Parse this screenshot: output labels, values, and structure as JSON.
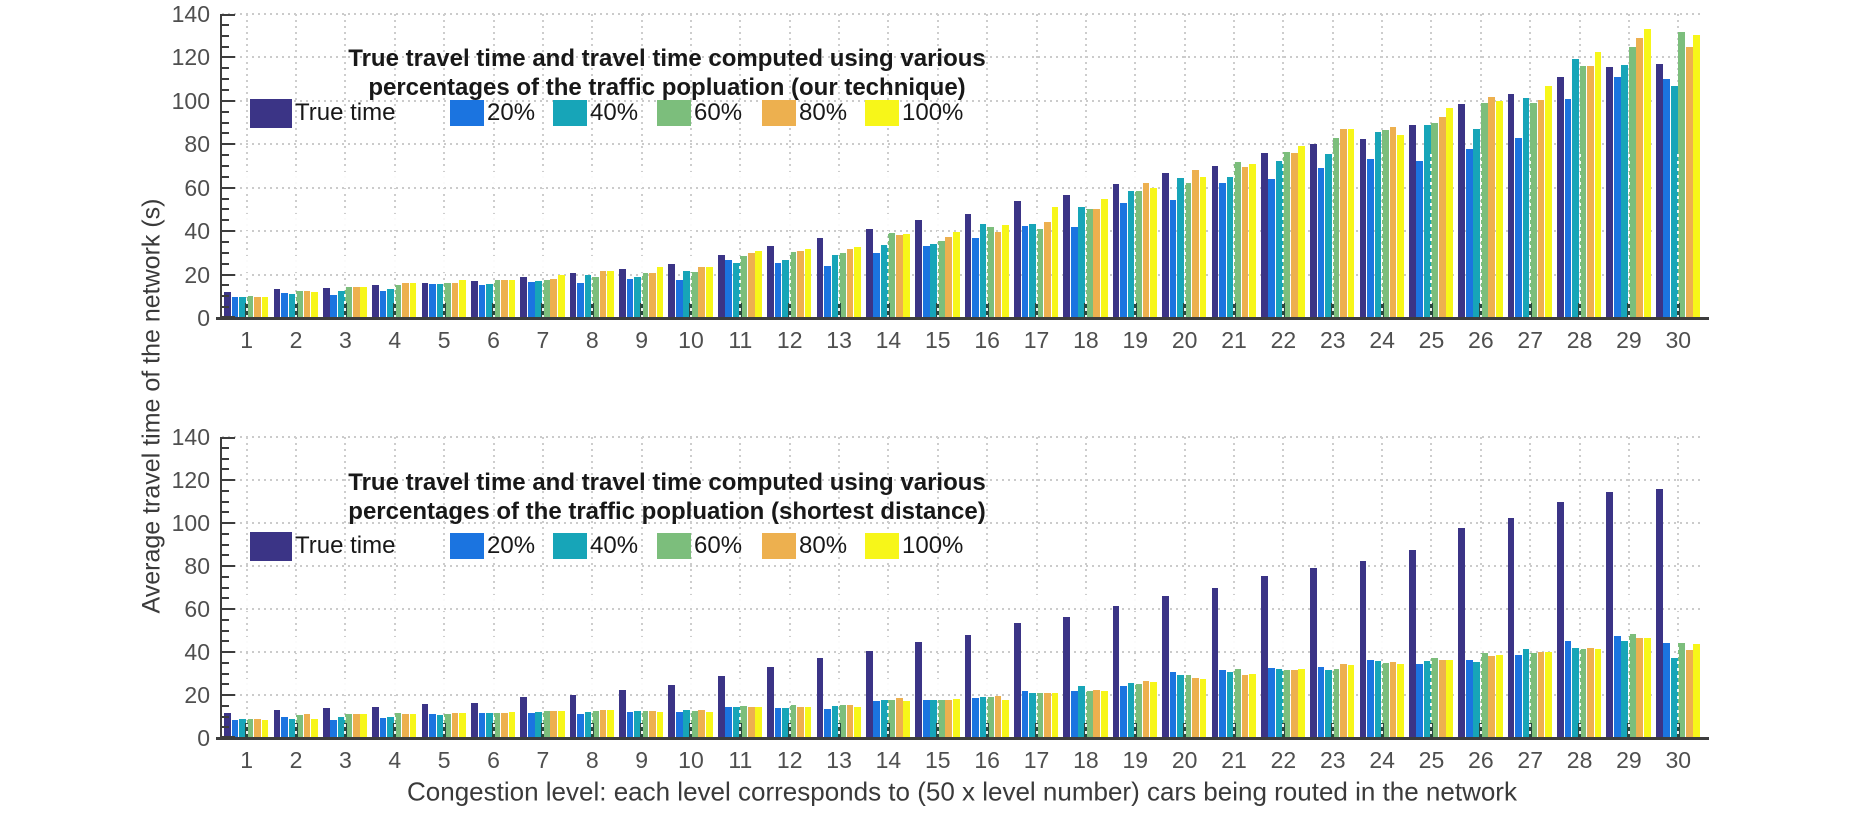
{
  "figure": {
    "ylabel": "Average travel time of the network (s)",
    "xlabel": "Congestion level: each level corresponds to (50 x level number) cars being routed in the network"
  },
  "style": {
    "grid_color": "#cbcbcb",
    "axis_color": "#3d3d3d",
    "tick_text_color": "#4f4f4f",
    "title_text_color": "#181818",
    "center_marker_color": "#2a473e"
  },
  "chart_data": [
    {
      "type": "bar",
      "title_line1": "True travel time and travel time computed using various",
      "title_line2": "percentages of the traffic popluation (our technique)",
      "ylim": [
        0,
        140
      ],
      "yticks": [
        0,
        20,
        40,
        60,
        80,
        100,
        120,
        140
      ],
      "grid": true,
      "legend_position": "inside-top-left",
      "categories": [
        1,
        2,
        3,
        4,
        5,
        6,
        7,
        8,
        9,
        10,
        11,
        12,
        13,
        14,
        15,
        16,
        17,
        18,
        19,
        20,
        21,
        22,
        23,
        24,
        25,
        26,
        27,
        28,
        29,
        30
      ],
      "center_marker_value": 7,
      "series": [
        {
          "name": "True time",
          "color": "#3B3486",
          "values": [
            12,
            13.5,
            14,
            15,
            16,
            17,
            19,
            20.5,
            22.5,
            25,
            29,
            33,
            37,
            41,
            45,
            48,
            54,
            56.5,
            61.5,
            67,
            70,
            76,
            80,
            82.5,
            89,
            98.5,
            103,
            111,
            115.5,
            117
          ]
        },
        {
          "name": "20%",
          "color": "#1B74E0",
          "values": [
            9.5,
            11.5,
            10.5,
            12.5,
            15.5,
            15,
            16.5,
            16,
            18,
            17.5,
            26.5,
            25.5,
            24,
            30,
            33,
            37,
            42.5,
            42,
            53,
            54.5,
            62,
            64,
            69,
            73,
            72.5,
            78,
            83,
            101,
            111,
            110
          ]
        },
        {
          "name": "40%",
          "color": "#17A5B8",
          "values": [
            9.5,
            11,
            12.5,
            13.5,
            15.5,
            15.5,
            17,
            20,
            19,
            21.5,
            25.5,
            26.5,
            29,
            33.5,
            34,
            43.5,
            43.5,
            51,
            58.5,
            64.5,
            65,
            72.5,
            75.5,
            85.5,
            89,
            87,
            101.5,
            119.5,
            116.5,
            107
          ]
        },
        {
          "name": "60%",
          "color": "#7CBE7C",
          "values": [
            10,
            12.5,
            14.5,
            15,
            16,
            17.5,
            17.5,
            19,
            20.5,
            21,
            28.5,
            30.5,
            30,
            39,
            35.5,
            42,
            41,
            50,
            58.5,
            62,
            72,
            76.5,
            83,
            86.5,
            90,
            99,
            99,
            116,
            125,
            131.5
          ]
        },
        {
          "name": "80%",
          "color": "#EDB04F",
          "values": [
            9.5,
            12.5,
            14.5,
            16,
            16,
            17.5,
            18,
            21.5,
            20.5,
            23.5,
            30,
            31,
            32,
            38,
            37.5,
            39.5,
            44,
            50,
            62,
            68,
            69.5,
            76,
            87,
            88,
            92.5,
            102,
            100.5,
            116,
            129,
            125
          ]
        },
        {
          "name": "100%",
          "color": "#F7F619",
          "values": [
            9.5,
            12,
            14.5,
            16,
            17.5,
            17.5,
            20,
            21.5,
            23.5,
            23.5,
            31,
            32,
            32.5,
            38.5,
            39.5,
            43,
            51,
            55,
            60,
            65,
            71,
            79,
            87,
            84.5,
            96.5,
            100,
            107,
            122.5,
            133,
            130.5
          ]
        }
      ]
    },
    {
      "type": "bar",
      "title_line1": "True travel time and travel time computed using various",
      "title_line2": "percentages of the traffic popluation (shortest distance)",
      "ylim": [
        0,
        140
      ],
      "yticks": [
        0,
        20,
        40,
        60,
        80,
        100,
        120,
        140
      ],
      "grid": true,
      "legend_position": "inside-top-left",
      "categories": [
        1,
        2,
        3,
        4,
        5,
        6,
        7,
        8,
        9,
        10,
        11,
        12,
        13,
        14,
        15,
        16,
        17,
        18,
        19,
        20,
        21,
        22,
        23,
        24,
        25,
        26,
        27,
        28,
        29,
        30
      ],
      "center_marker_value": 7,
      "series": [
        {
          "name": "True time",
          "color": "#3B3486",
          "values": [
            11.5,
            13,
            14,
            14.5,
            16,
            16.5,
            19,
            20,
            22.5,
            24.5,
            29,
            33,
            37,
            40.5,
            44.5,
            48,
            53.5,
            56.5,
            61.5,
            66,
            70,
            75.5,
            79,
            82.5,
            87.5,
            97.5,
            102.5,
            110,
            114.5,
            116
          ]
        },
        {
          "name": "20%",
          "color": "#1B74E0",
          "values": [
            8.5,
            10,
            8.5,
            9.5,
            11,
            11.5,
            11.5,
            11,
            12,
            12,
            14.5,
            14,
            13.5,
            17,
            17.5,
            18.5,
            22,
            22,
            24,
            30.5,
            31.5,
            32.5,
            33,
            36.5,
            34.5,
            36.5,
            38.5,
            45,
            47.5,
            44
          ]
        },
        {
          "name": "40%",
          "color": "#17A5B8",
          "values": [
            9,
            9,
            10,
            10,
            10.5,
            11.5,
            12,
            12,
            12.5,
            13,
            14.5,
            14,
            15,
            17.5,
            17.5,
            19,
            21,
            24,
            25.5,
            29.5,
            30.5,
            32,
            31.5,
            36,
            36,
            35.5,
            41.5,
            42,
            45,
            37
          ]
        },
        {
          "name": "60%",
          "color": "#7CBE7C",
          "values": [
            9,
            10.5,
            11,
            11.5,
            11,
            11.5,
            12.5,
            12.5,
            12.5,
            12.5,
            15,
            15.5,
            15.5,
            17.5,
            17.5,
            19,
            21,
            22,
            25,
            29.5,
            32,
            31.5,
            32,
            35,
            37,
            39.5,
            39.5,
            41.5,
            48.5,
            44
          ]
        },
        {
          "name": "80%",
          "color": "#EDB04F",
          "values": [
            9,
            11,
            11,
            11,
            11.5,
            11.5,
            12.5,
            13,
            12.5,
            13,
            14.5,
            14.5,
            15.5,
            18.5,
            17.5,
            19.5,
            21,
            22.5,
            26.5,
            28,
            29.5,
            31.5,
            34.5,
            35.5,
            36.5,
            38,
            40,
            42,
            46.5,
            41
          ]
        },
        {
          "name": "100%",
          "color": "#F7F619",
          "values": [
            8.5,
            9,
            11,
            11,
            11.5,
            12,
            12.5,
            13,
            12,
            12,
            14.5,
            14.5,
            14.5,
            17,
            18,
            17.5,
            21,
            22,
            26,
            27.5,
            30,
            32,
            34,
            34.5,
            36.5,
            38.5,
            40,
            41.5,
            46.5,
            43.5
          ]
        }
      ]
    }
  ]
}
